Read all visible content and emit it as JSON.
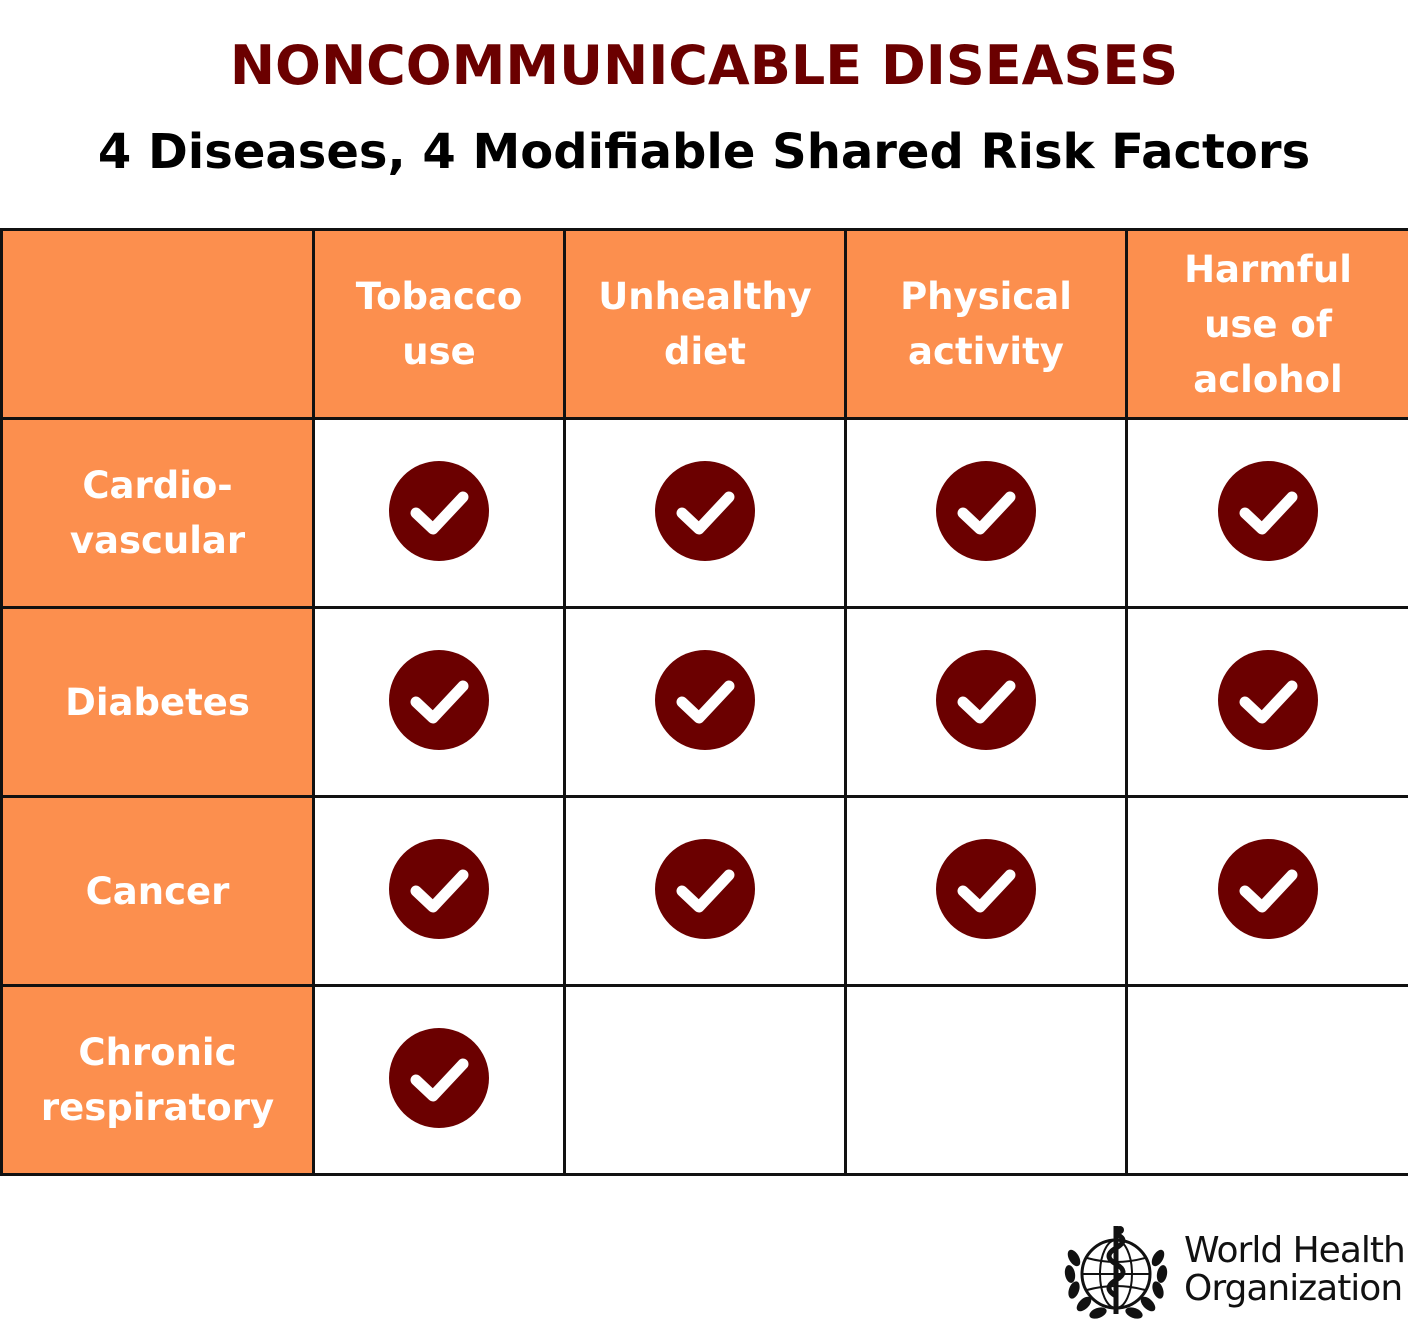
{
  "title": "NONCOMMUNICABLE DISEASES",
  "subtitle": "4 Diseases, 4 Modifiable Shared Risk Factors",
  "colors": {
    "title": "#6b0000",
    "header_fill": "#fc8f4e",
    "check_fill": "#6b0000",
    "grid_line": "#111111"
  },
  "table": {
    "columns": [
      {
        "label": "Tobacco\nuse"
      },
      {
        "label": "Unhealthy\ndiet"
      },
      {
        "label": "Physical\nactivity"
      },
      {
        "label": "Harmful\nuse of\naclohol"
      }
    ],
    "rows": [
      {
        "label": "Cardio-\nvascular",
        "checks": [
          true,
          true,
          true,
          true
        ]
      },
      {
        "label": "Diabetes",
        "checks": [
          true,
          true,
          true,
          true
        ]
      },
      {
        "label": "Cancer",
        "checks": [
          true,
          true,
          true,
          true
        ]
      },
      {
        "label": "Chronic\nrespiratory",
        "checks": [
          true,
          false,
          false,
          false
        ]
      }
    ],
    "check_icon": "check-circle-icon"
  },
  "logo": {
    "emblem_icon": "who-emblem-icon",
    "line1": "World Health",
    "line2": "Organization"
  }
}
